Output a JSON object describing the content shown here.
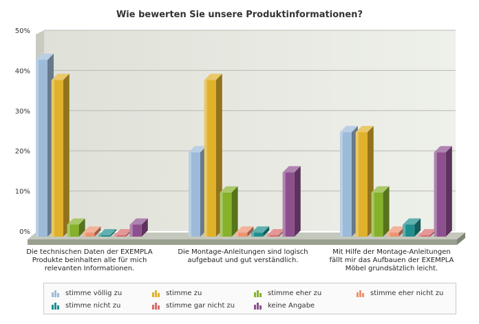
{
  "chart_data": {
    "type": "bar",
    "title": "Wie bewerten Sie unsere Produktinformationen?",
    "xlabel": "",
    "ylabel": "",
    "ylim": [
      0,
      50
    ],
    "yticks": [
      "0%",
      "10%",
      "20%",
      "30%",
      "40%",
      "50%"
    ],
    "grid": true,
    "legend_position": "bottom",
    "categories": [
      "Die technischen Daten der EXEMPLA Produkte beinhalten alle für mich relevanten Informationen.",
      "Die Montage-Anleitungen sind logisch aufgebaut und gut verständlich.",
      "Mit Hilfe der Montage-Anleitungen fällt mir das Aufbauen der EXEMPLA Möbel grundsätzlich leicht."
    ],
    "series": [
      {
        "name": "stimme völlig zu",
        "color": "#9dbbd8",
        "values": [
          44,
          21,
          26
        ]
      },
      {
        "name": "stimme zu",
        "color": "#e0b12a",
        "values": [
          39,
          39,
          26
        ]
      },
      {
        "name": "stimme eher zu",
        "color": "#86b12a",
        "values": [
          3,
          11,
          11
        ]
      },
      {
        "name": "stimme eher nicht zu",
        "color": "#ee9270",
        "values": [
          1,
          1,
          1
        ]
      },
      {
        "name": "stimme nicht zu",
        "color": "#1e8e8e",
        "values": [
          0,
          1,
          3
        ]
      },
      {
        "name": "stimme gar nicht zu",
        "color": "#d96b6b",
        "values": [
          0,
          0,
          0
        ]
      },
      {
        "name": "keine Angabe",
        "color": "#8e4f8e",
        "values": [
          3,
          16,
          21
        ]
      }
    ]
  }
}
